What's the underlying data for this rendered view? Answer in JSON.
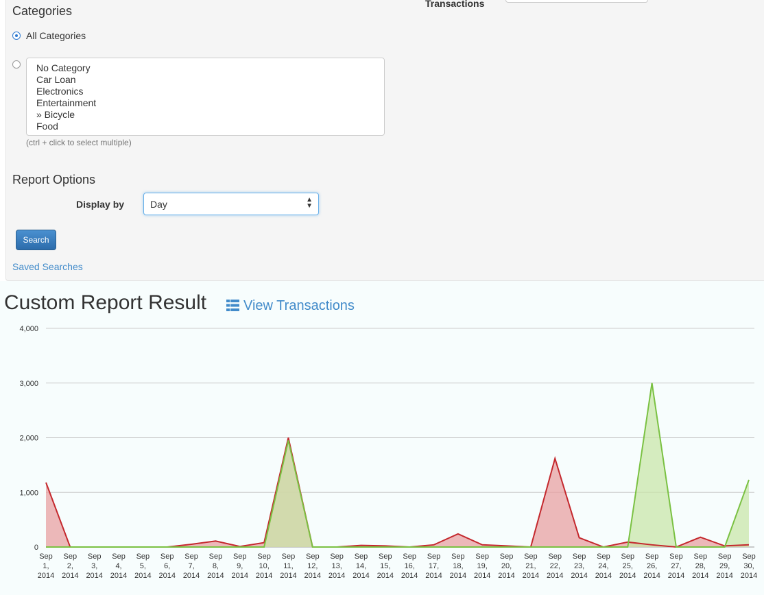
{
  "filters": {
    "transactions_label": "Transactions",
    "categories_title": "Categories",
    "all_categories_label": "All Categories",
    "category_options": [
      "No Category",
      "Car Loan",
      "Electronics",
      "Entertainment",
      "» Bicycle",
      "Food"
    ],
    "multi_select_hint": "(ctrl + click to select multiple)"
  },
  "report_options": {
    "title": "Report Options",
    "display_by_label": "Display by",
    "display_by_value": "Day"
  },
  "actions": {
    "search_label": "Search",
    "saved_searches_label": "Saved Searches"
  },
  "result": {
    "title": "Custom Report Result",
    "view_transactions_label": "View Transactions"
  },
  "colors": {
    "expense_line": "#c4282d",
    "expense_fill": "#e8a0a2",
    "income_line": "#7ac142",
    "income_fill": "#c9e6a9",
    "link": "#428bca"
  },
  "chart_data": {
    "type": "area",
    "x": [
      "Sep 1, 2014",
      "Sep 2, 2014",
      "Sep 3, 2014",
      "Sep 4, 2014",
      "Sep 5, 2014",
      "Sep 6, 2014",
      "Sep 7, 2014",
      "Sep 8, 2014",
      "Sep 9, 2014",
      "Sep 10, 2014",
      "Sep 11, 2014",
      "Sep 12, 2014",
      "Sep 13, 2014",
      "Sep 14, 2014",
      "Sep 15, 2014",
      "Sep 16, 2014",
      "Sep 17, 2014",
      "Sep 18, 2014",
      "Sep 19, 2014",
      "Sep 20, 2014",
      "Sep 21, 2014",
      "Sep 22, 2014",
      "Sep 23, 2014",
      "Sep 24, 2014",
      "Sep 25, 2014",
      "Sep 26, 2014",
      "Sep 27, 2014",
      "Sep 28, 2014",
      "Sep 29, 2014",
      "Sep 30, 2014"
    ],
    "series": [
      {
        "color": "#c4282d",
        "values": [
          1180,
          0,
          0,
          0,
          0,
          0,
          50,
          110,
          10,
          80,
          2000,
          0,
          0,
          30,
          20,
          0,
          40,
          240,
          40,
          20,
          0,
          1620,
          170,
          0,
          90,
          40,
          0,
          180,
          20,
          40
        ]
      },
      {
        "color": "#7ac142",
        "values": [
          0,
          0,
          0,
          0,
          0,
          0,
          0,
          0,
          0,
          0,
          1950,
          0,
          0,
          0,
          0,
          0,
          0,
          0,
          0,
          0,
          0,
          0,
          0,
          0,
          0,
          3000,
          0,
          0,
          0,
          1230
        ]
      }
    ],
    "yticks": [
      "4,000",
      "3,000",
      "2,000",
      "1,000",
      "0"
    ],
    "ylim": [
      0,
      4000
    ],
    "grid": true
  }
}
